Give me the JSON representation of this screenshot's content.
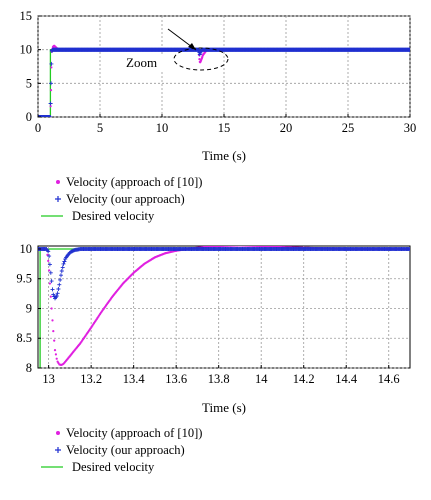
{
  "chart_data": [
    {
      "type": "line",
      "xlabel": "Time (s)",
      "ylabel": "",
      "xlim": [
        0,
        30
      ],
      "ylim": [
        0,
        15
      ],
      "xticks": [
        "0",
        "5",
        "10",
        "15",
        "20",
        "25",
        "30"
      ],
      "yticks": [
        "0",
        "5",
        "10",
        "15"
      ],
      "grid": true,
      "legend_position": "below",
      "annotation": "Zoom",
      "series": [
        {
          "name": "Velocity (approach of [10])",
          "color": "#e020e0",
          "marker": "dot",
          "x": [
            0,
            1.0,
            1.05,
            1.1,
            1.2,
            1.3,
            1.4,
            1.6,
            2,
            5,
            10,
            12.95,
            13.02,
            13.06,
            13.15,
            13.3,
            13.6,
            13.9,
            14.2,
            15,
            20,
            25,
            30
          ],
          "y": [
            0,
            0,
            4,
            9.6,
            10.4,
            10.6,
            10.4,
            10.1,
            10,
            10,
            10,
            10,
            8.6,
            8.05,
            8.4,
            9.2,
            9.95,
            10.05,
            10.02,
            10,
            10,
            10,
            10
          ]
        },
        {
          "name": "Velocity (our approach)",
          "color": "#2030d0",
          "marker": "plus",
          "x": [
            0,
            1.0,
            1.05,
            1.1,
            1.2,
            1.5,
            5,
            10,
            13.0,
            13.04,
            13.08,
            13.15,
            13.3,
            15,
            20,
            25,
            30
          ],
          "y": [
            0,
            0,
            5,
            9.8,
            10,
            10,
            10,
            10,
            10,
            9.2,
            9.5,
            9.92,
            10,
            10,
            10,
            10,
            10
          ]
        },
        {
          "name": "Desired velocity",
          "color": "#22cc22",
          "marker": "none",
          "x": [
            0,
            1.0,
            1.0,
            30
          ],
          "y": [
            0,
            0,
            10,
            10
          ]
        }
      ]
    },
    {
      "type": "line",
      "xlabel": "Time (s)",
      "ylabel": "",
      "xlim": [
        12.95,
        14.7
      ],
      "ylim": [
        8,
        10.05
      ],
      "xticks": [
        "13",
        "13.2",
        "13.4",
        "13.6",
        "13.8",
        "14",
        "14.2",
        "14.4",
        "14.6"
      ],
      "yticks": [
        "8",
        "8.5",
        "9",
        "9.5",
        "10"
      ],
      "grid": true,
      "legend_position": "below",
      "series": [
        {
          "name": "Velocity (approach of [10])",
          "color": "#e020e0",
          "marker": "dot",
          "x": [
            12.95,
            12.99,
            13.0,
            13.01,
            13.02,
            13.03,
            13.04,
            13.05,
            13.06,
            13.07,
            13.1,
            13.15,
            13.2,
            13.25,
            13.3,
            13.35,
            13.4,
            13.45,
            13.5,
            13.55,
            13.6,
            13.65,
            13.7,
            13.75,
            13.8,
            13.9,
            14.0,
            14.1,
            14.2,
            14.3,
            14.4,
            14.5,
            14.6,
            14.7
          ],
          "y": [
            10,
            10,
            9.75,
            9.2,
            8.7,
            8.3,
            8.12,
            8.06,
            8.05,
            8.07,
            8.2,
            8.42,
            8.68,
            8.95,
            9.2,
            9.42,
            9.6,
            9.75,
            9.86,
            9.93,
            9.97,
            10.0,
            10.02,
            10.04,
            10.05,
            10.06,
            10.05,
            10.03,
            10.02,
            10.01,
            10.0,
            10.0,
            10.0,
            10.0
          ]
        },
        {
          "name": "Velocity (our approach)",
          "color": "#2030d0",
          "marker": "plus",
          "x": [
            12.95,
            12.99,
            13.0,
            13.01,
            13.02,
            13.03,
            13.04,
            13.05,
            13.06,
            13.07,
            13.08,
            13.1,
            13.12,
            13.15,
            13.2,
            13.3,
            13.5,
            13.8,
            14.0,
            14.2,
            14.4,
            14.6,
            14.7
          ],
          "y": [
            10,
            10,
            9.95,
            9.6,
            9.25,
            9.17,
            9.22,
            9.4,
            9.6,
            9.75,
            9.85,
            9.94,
            9.98,
            10.0,
            10.0,
            10.0,
            10.0,
            10.0,
            10.0,
            10.0,
            10.0,
            10.0,
            10.0
          ]
        },
        {
          "name": "Desired velocity",
          "color": "#22cc22",
          "marker": "none",
          "x": [
            12.95,
            12.96,
            12.96,
            14.7
          ],
          "y": [
            8,
            8,
            10,
            10
          ]
        }
      ]
    }
  ]
}
